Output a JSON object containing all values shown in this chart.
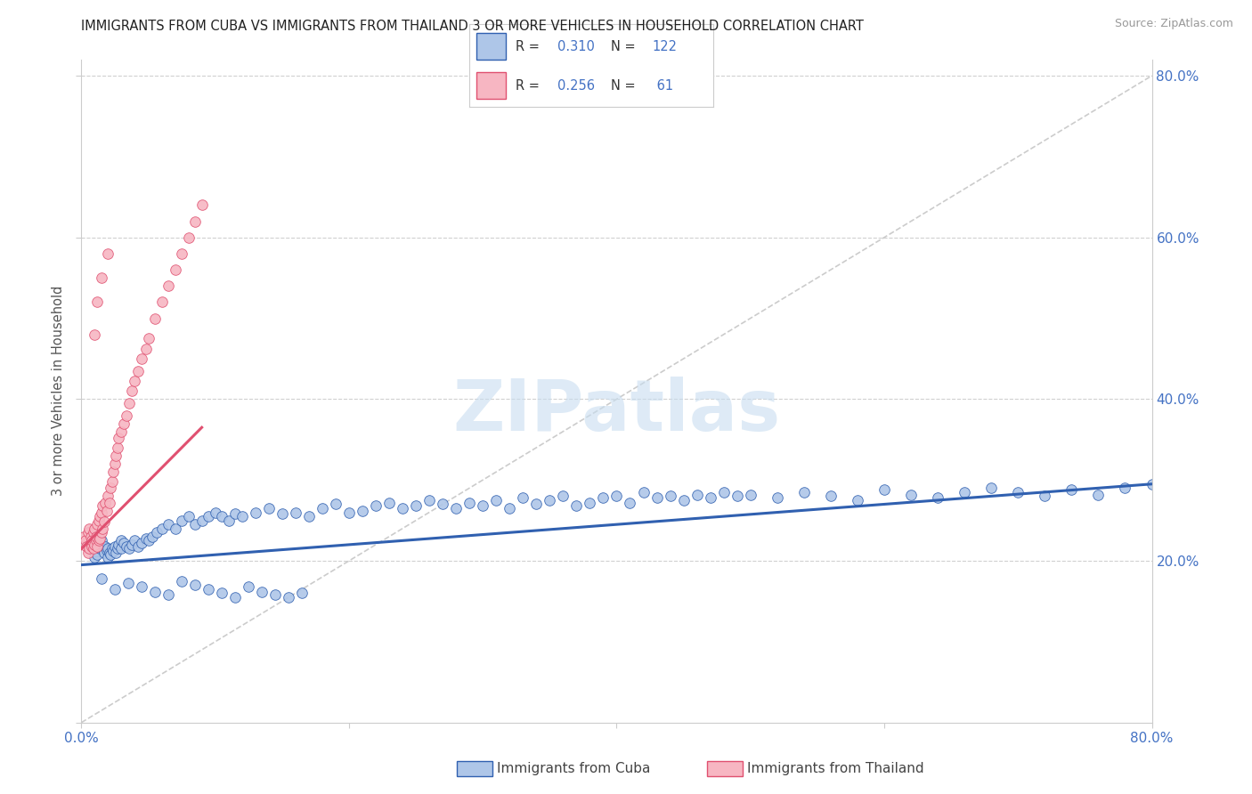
{
  "title": "IMMIGRANTS FROM CUBA VS IMMIGRANTS FROM THAILAND 3 OR MORE VEHICLES IN HOUSEHOLD CORRELATION CHART",
  "source": "Source: ZipAtlas.com",
  "ylabel": "3 or more Vehicles in Household",
  "xlim": [
    0.0,
    0.8
  ],
  "ylim": [
    0.0,
    0.82
  ],
  "legend_cuba_R": "0.310",
  "legend_cuba_N": "122",
  "legend_thailand_R": "0.256",
  "legend_thailand_N": " 61",
  "cuba_color": "#aec6e8",
  "thailand_color": "#f7b6c2",
  "cuba_line_color": "#3060b0",
  "thailand_line_color": "#e05070",
  "diagonal_color": "#cccccc",
  "watermark": "ZIPatlas",
  "background_color": "#ffffff",
  "grid_color": "#d0d0d0",
  "title_fontsize": 10.5,
  "label_color": "#4472c4",
  "cuba_scatter_x": [
    0.005,
    0.006,
    0.007,
    0.008,
    0.009,
    0.01,
    0.01,
    0.011,
    0.012,
    0.013,
    0.014,
    0.015,
    0.015,
    0.016,
    0.017,
    0.018,
    0.019,
    0.02,
    0.02,
    0.021,
    0.022,
    0.023,
    0.024,
    0.025,
    0.026,
    0.027,
    0.028,
    0.03,
    0.03,
    0.032,
    0.034,
    0.036,
    0.038,
    0.04,
    0.042,
    0.045,
    0.048,
    0.05,
    0.053,
    0.056,
    0.06,
    0.065,
    0.07,
    0.075,
    0.08,
    0.085,
    0.09,
    0.095,
    0.1,
    0.105,
    0.11,
    0.115,
    0.12,
    0.13,
    0.14,
    0.15,
    0.16,
    0.17,
    0.18,
    0.19,
    0.2,
    0.21,
    0.22,
    0.23,
    0.24,
    0.25,
    0.26,
    0.27,
    0.28,
    0.29,
    0.3,
    0.31,
    0.32,
    0.33,
    0.34,
    0.35,
    0.36,
    0.37,
    0.38,
    0.39,
    0.4,
    0.41,
    0.42,
    0.43,
    0.44,
    0.45,
    0.46,
    0.47,
    0.48,
    0.49,
    0.5,
    0.52,
    0.54,
    0.56,
    0.58,
    0.6,
    0.62,
    0.64,
    0.66,
    0.68,
    0.7,
    0.72,
    0.74,
    0.76,
    0.78,
    0.8,
    0.015,
    0.025,
    0.035,
    0.045,
    0.055,
    0.065,
    0.075,
    0.085,
    0.095,
    0.105,
    0.115,
    0.125,
    0.135,
    0.145,
    0.155,
    0.165
  ],
  "cuba_scatter_y": [
    0.22,
    0.215,
    0.225,
    0.23,
    0.218,
    0.21,
    0.205,
    0.212,
    0.208,
    0.218,
    0.215,
    0.22,
    0.225,
    0.215,
    0.21,
    0.218,
    0.213,
    0.205,
    0.215,
    0.21,
    0.208,
    0.215,
    0.212,
    0.218,
    0.21,
    0.215,
    0.22,
    0.225,
    0.215,
    0.222,
    0.218,
    0.215,
    0.22,
    0.225,
    0.218,
    0.222,
    0.228,
    0.225,
    0.23,
    0.235,
    0.24,
    0.245,
    0.24,
    0.25,
    0.255,
    0.245,
    0.25,
    0.255,
    0.26,
    0.255,
    0.25,
    0.258,
    0.255,
    0.26,
    0.265,
    0.258,
    0.26,
    0.255,
    0.265,
    0.27,
    0.26,
    0.262,
    0.268,
    0.272,
    0.265,
    0.268,
    0.275,
    0.27,
    0.265,
    0.272,
    0.268,
    0.275,
    0.265,
    0.278,
    0.27,
    0.275,
    0.28,
    0.268,
    0.272,
    0.278,
    0.28,
    0.272,
    0.285,
    0.278,
    0.28,
    0.275,
    0.282,
    0.278,
    0.285,
    0.28,
    0.282,
    0.278,
    0.285,
    0.28,
    0.275,
    0.288,
    0.282,
    0.278,
    0.285,
    0.29,
    0.285,
    0.28,
    0.288,
    0.282,
    0.29,
    0.295,
    0.178,
    0.165,
    0.172,
    0.168,
    0.162,
    0.158,
    0.175,
    0.17,
    0.165,
    0.16,
    0.155,
    0.168,
    0.162,
    0.158,
    0.155,
    0.16
  ],
  "thailand_scatter_x": [
    0.002,
    0.003,
    0.004,
    0.005,
    0.005,
    0.006,
    0.006,
    0.007,
    0.007,
    0.008,
    0.008,
    0.009,
    0.009,
    0.01,
    0.01,
    0.011,
    0.011,
    0.012,
    0.012,
    0.013,
    0.013,
    0.014,
    0.014,
    0.015,
    0.015,
    0.016,
    0.016,
    0.017,
    0.018,
    0.019,
    0.02,
    0.021,
    0.022,
    0.023,
    0.024,
    0.025,
    0.026,
    0.027,
    0.028,
    0.03,
    0.032,
    0.034,
    0.036,
    0.038,
    0.04,
    0.042,
    0.045,
    0.048,
    0.05,
    0.055,
    0.06,
    0.065,
    0.07,
    0.075,
    0.08,
    0.085,
    0.09,
    0.01,
    0.012,
    0.015,
    0.02
  ],
  "thailand_scatter_y": [
    0.23,
    0.225,
    0.218,
    0.21,
    0.235,
    0.215,
    0.24,
    0.222,
    0.23,
    0.218,
    0.225,
    0.215,
    0.235,
    0.22,
    0.24,
    0.225,
    0.23,
    0.218,
    0.245,
    0.225,
    0.25,
    0.228,
    0.255,
    0.235,
    0.26,
    0.24,
    0.268,
    0.248,
    0.272,
    0.262,
    0.28,
    0.272,
    0.29,
    0.298,
    0.31,
    0.32,
    0.33,
    0.34,
    0.352,
    0.36,
    0.37,
    0.38,
    0.395,
    0.41,
    0.422,
    0.435,
    0.45,
    0.462,
    0.475,
    0.5,
    0.52,
    0.54,
    0.56,
    0.58,
    0.6,
    0.62,
    0.64,
    0.48,
    0.52,
    0.55,
    0.58
  ],
  "cuba_regline_x": [
    0.0,
    0.8
  ],
  "cuba_regline_y": [
    0.195,
    0.295
  ],
  "thailand_regline_x": [
    0.0,
    0.09
  ],
  "thailand_regline_y": [
    0.215,
    0.365
  ]
}
